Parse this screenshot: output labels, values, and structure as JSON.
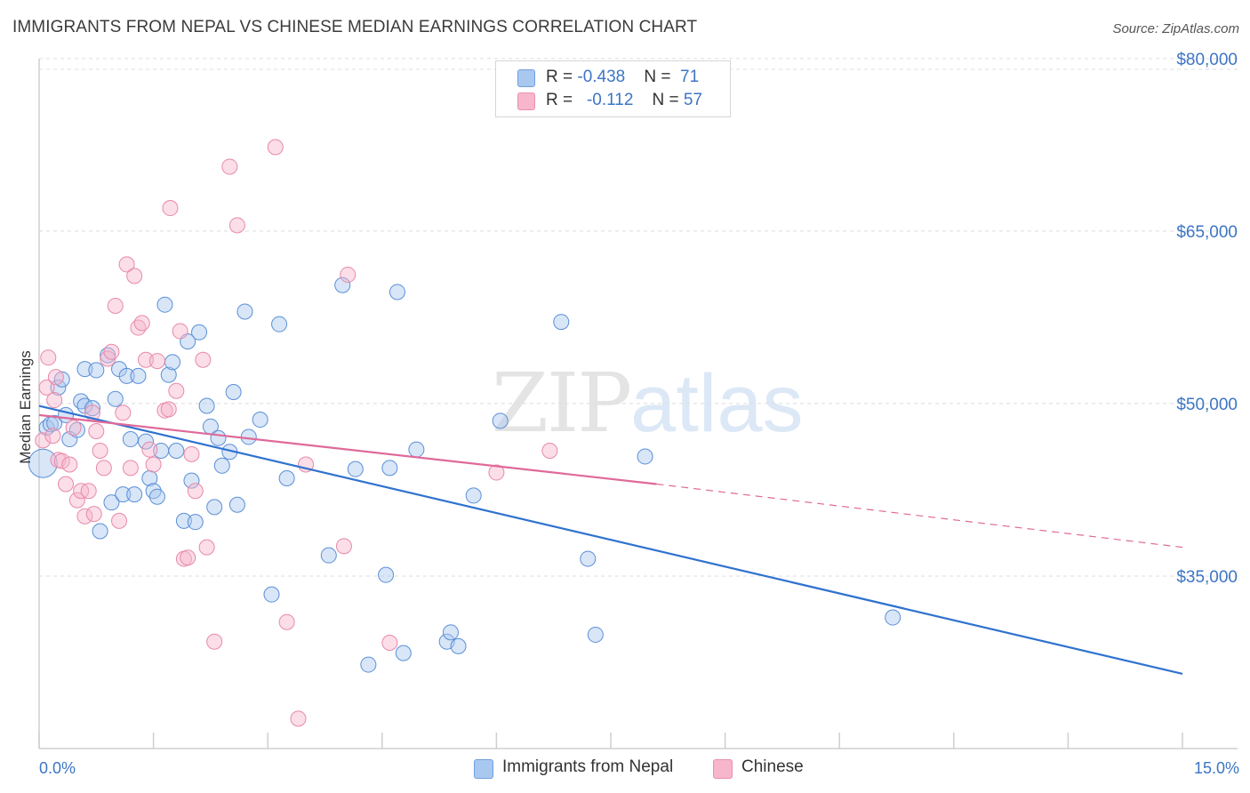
{
  "header": {
    "title": "IMMIGRANTS FROM NEPAL VS CHINESE MEDIAN EARNINGS CORRELATION CHART",
    "source": "Source: ZipAtlas.com"
  },
  "watermark": {
    "zip": "ZIP",
    "atlas": "atlas"
  },
  "legend": {
    "rows": [
      {
        "r_label": "R = ",
        "r_value": "-0.438",
        "n_label": "N = ",
        "n_value": "71",
        "color": "#a9c8f0"
      },
      {
        "r_label": "R = ",
        "r_value": "-0.112",
        "n_label": "N = ",
        "n_value": "57",
        "color": "#f7b6cb"
      }
    ]
  },
  "bottom_legend": [
    {
      "label": "Immigrants from Nepal",
      "color": "#a9c8f0"
    },
    {
      "label": "Chinese",
      "color": "#f7b6cb"
    }
  ],
  "chart_data": {
    "type": "scatter",
    "ylabel": "Median Earnings",
    "xlim": [
      0,
      15
    ],
    "ylim": [
      20000,
      82000
    ],
    "y_ticks": [
      {
        "value": 35000,
        "label": "$35,000"
      },
      {
        "value": 50000,
        "label": "$50,000"
      },
      {
        "value": 65000,
        "label": "$65,000"
      },
      {
        "value": 80000,
        "label": "$80,000"
      }
    ],
    "x_tick_labels": [
      {
        "value": 0,
        "label": "0.0%"
      },
      {
        "value": 15,
        "label": "15.0%"
      }
    ],
    "grid": true,
    "series": [
      {
        "name": "Immigrants from Nepal",
        "color": "#a9c8f0",
        "stroke": "#5b8fd6",
        "trend": {
          "x0": 0,
          "y0": 49800,
          "x1": 15,
          "y1": 26500,
          "color": "#2f72cf"
        },
        "points": [
          [
            0.05,
            44800
          ],
          [
            0.1,
            47900
          ],
          [
            0.15,
            48200
          ],
          [
            0.2,
            48300
          ],
          [
            0.25,
            51400
          ],
          [
            0.3,
            52100
          ],
          [
            0.35,
            49000
          ],
          [
            0.4,
            46900
          ],
          [
            0.5,
            47700
          ],
          [
            0.55,
            50200
          ],
          [
            0.6,
            49800
          ],
          [
            0.7,
            49600
          ],
          [
            0.6,
            53000
          ],
          [
            0.75,
            52900
          ],
          [
            0.8,
            38900
          ],
          [
            0.9,
            54200
          ],
          [
            0.95,
            41400
          ],
          [
            1.0,
            50400
          ],
          [
            1.05,
            53000
          ],
          [
            1.1,
            42100
          ],
          [
            1.15,
            52400
          ],
          [
            1.2,
            46900
          ],
          [
            1.25,
            42100
          ],
          [
            1.3,
            52400
          ],
          [
            1.4,
            46700
          ],
          [
            1.45,
            43500
          ],
          [
            1.5,
            42400
          ],
          [
            1.55,
            41900
          ],
          [
            1.6,
            45900
          ],
          [
            1.65,
            58600
          ],
          [
            1.7,
            52500
          ],
          [
            1.75,
            53600
          ],
          [
            1.8,
            45900
          ],
          [
            1.9,
            39800
          ],
          [
            1.95,
            55400
          ],
          [
            2.0,
            43300
          ],
          [
            2.05,
            39700
          ],
          [
            2.1,
            56200
          ],
          [
            2.2,
            49800
          ],
          [
            2.25,
            48000
          ],
          [
            2.3,
            41000
          ],
          [
            2.35,
            47000
          ],
          [
            2.4,
            44600
          ],
          [
            2.5,
            45800
          ],
          [
            2.55,
            51000
          ],
          [
            2.6,
            41200
          ],
          [
            2.7,
            58000
          ],
          [
            2.75,
            47100
          ],
          [
            2.9,
            48600
          ],
          [
            3.05,
            33400
          ],
          [
            3.15,
            56900
          ],
          [
            3.25,
            43500
          ],
          [
            3.8,
            36800
          ],
          [
            3.98,
            60300
          ],
          [
            4.15,
            44300
          ],
          [
            4.32,
            27300
          ],
          [
            4.55,
            35100
          ],
          [
            4.6,
            44400
          ],
          [
            4.7,
            59700
          ],
          [
            4.78,
            28300
          ],
          [
            4.95,
            46000
          ],
          [
            5.35,
            29300
          ],
          [
            5.4,
            30100
          ],
          [
            5.5,
            28900
          ],
          [
            5.7,
            42000
          ],
          [
            6.05,
            48500
          ],
          [
            6.85,
            57100
          ],
          [
            7.2,
            36500
          ],
          [
            7.3,
            29900
          ],
          [
            7.95,
            45400
          ],
          [
            11.2,
            31400
          ]
        ]
      },
      {
        "name": "Chinese",
        "color": "#f7b6cb",
        "stroke": "#e889a8",
        "trend": {
          "x0": 0,
          "y0": 49000,
          "x1": 8.1,
          "y1": 43000,
          "color": "#e0699a",
          "dash_x1": 15,
          "dash_y1": 37500
        },
        "points": [
          [
            0.05,
            46800
          ],
          [
            0.1,
            51400
          ],
          [
            0.12,
            54000
          ],
          [
            0.18,
            47200
          ],
          [
            0.2,
            50300
          ],
          [
            0.22,
            52300
          ],
          [
            0.25,
            45100
          ],
          [
            0.3,
            45000
          ],
          [
            0.35,
            43000
          ],
          [
            0.4,
            44700
          ],
          [
            0.45,
            47900
          ],
          [
            0.5,
            41600
          ],
          [
            0.55,
            42400
          ],
          [
            0.6,
            40200
          ],
          [
            0.65,
            42400
          ],
          [
            0.7,
            49200
          ],
          [
            0.72,
            40400
          ],
          [
            0.75,
            47600
          ],
          [
            0.8,
            45900
          ],
          [
            0.85,
            44400
          ],
          [
            0.9,
            53900
          ],
          [
            0.95,
            54500
          ],
          [
            1.0,
            58500
          ],
          [
            1.05,
            39800
          ],
          [
            1.1,
            49200
          ],
          [
            1.15,
            62100
          ],
          [
            1.2,
            44400
          ],
          [
            1.25,
            61100
          ],
          [
            1.3,
            56600
          ],
          [
            1.35,
            57000
          ],
          [
            1.4,
            53800
          ],
          [
            1.45,
            46000
          ],
          [
            1.5,
            44700
          ],
          [
            1.55,
            53700
          ],
          [
            1.65,
            49400
          ],
          [
            1.7,
            49500
          ],
          [
            1.72,
            67000
          ],
          [
            1.8,
            51100
          ],
          [
            1.85,
            56300
          ],
          [
            1.9,
            36500
          ],
          [
            1.95,
            36600
          ],
          [
            2.0,
            45600
          ],
          [
            2.05,
            42400
          ],
          [
            2.15,
            53800
          ],
          [
            2.2,
            37500
          ],
          [
            2.3,
            29300
          ],
          [
            2.5,
            70600
          ],
          [
            2.6,
            65500
          ],
          [
            3.1,
            72300
          ],
          [
            3.25,
            31000
          ],
          [
            3.4,
            22600
          ],
          [
            3.5,
            44700
          ],
          [
            4.0,
            37600
          ],
          [
            4.05,
            61200
          ],
          [
            4.6,
            29200
          ],
          [
            6.0,
            44000
          ],
          [
            6.7,
            45900
          ]
        ]
      }
    ]
  }
}
